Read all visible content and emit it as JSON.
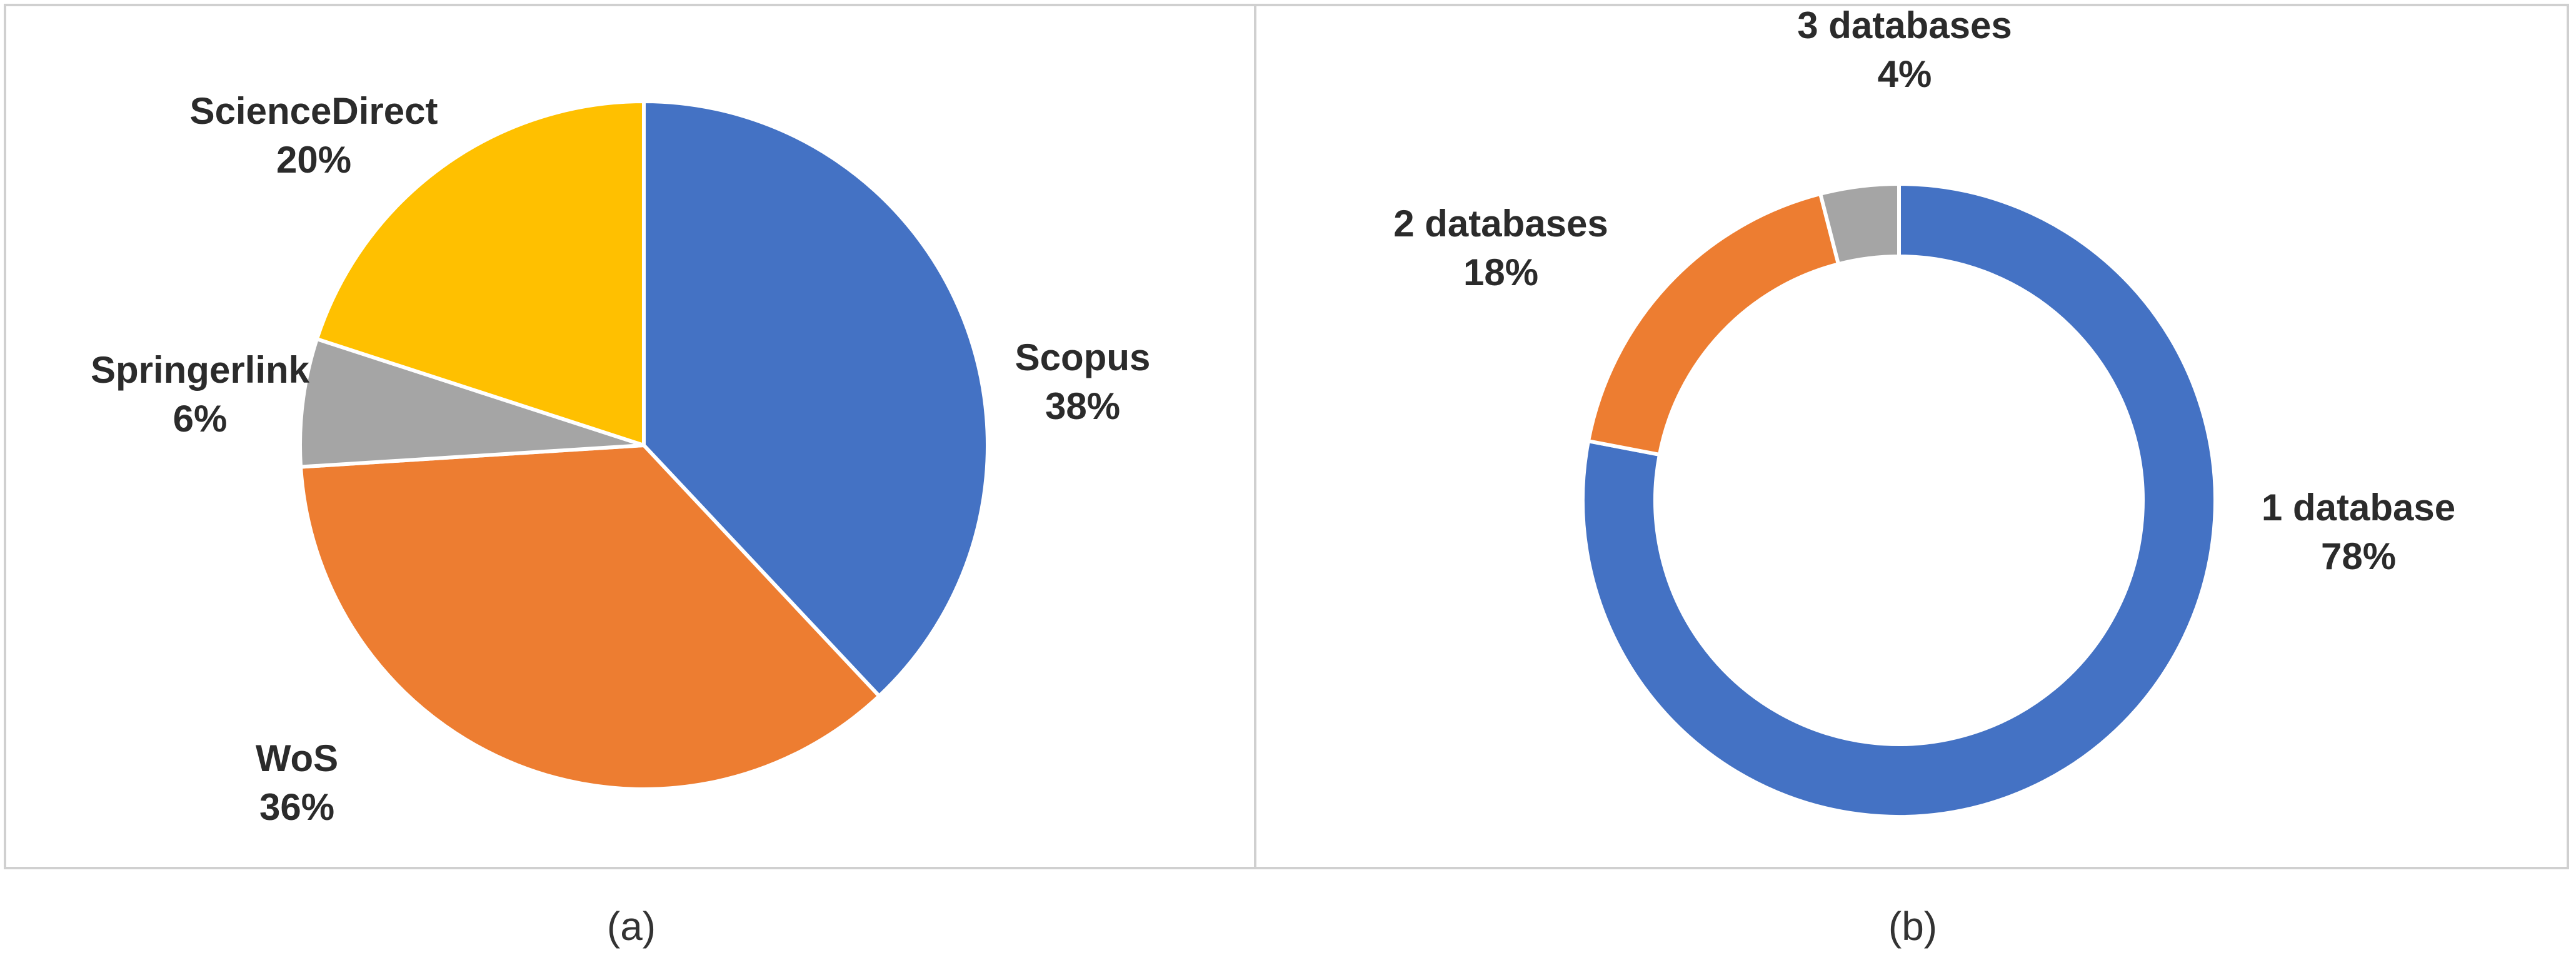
{
  "chart_data": [
    {
      "type": "pie",
      "panel_caption": "(a)",
      "categories": [
        "Scopus",
        "WoS",
        "Springerlink",
        "ScienceDirect"
      ],
      "values": [
        38,
        36,
        6,
        20
      ],
      "labels": [
        "38%",
        "36%",
        "6%",
        "20%"
      ],
      "colors": [
        "#4472C4",
        "#ED7D31",
        "#A5A5A5",
        "#FFC000"
      ]
    },
    {
      "type": "pie",
      "panel_caption": "(b)",
      "categories": [
        "1 database",
        "2 databases",
        "3 databases"
      ],
      "values": [
        78,
        18,
        4
      ],
      "labels": [
        "78%",
        "18%",
        "4%"
      ],
      "colors": [
        "#4472C4",
        "#ED7D31",
        "#A5A5A5"
      ]
    }
  ]
}
